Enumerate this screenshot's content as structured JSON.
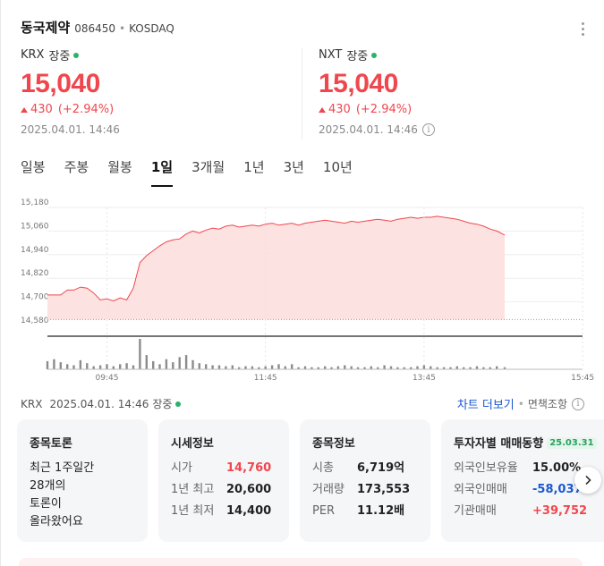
{
  "header": {
    "name": "동국제약",
    "code": "086450",
    "separator": "•",
    "market": "KOSDAQ"
  },
  "krx": {
    "market": "KRX",
    "session": "장중",
    "price": "15,040",
    "change": "430",
    "change_pct": "(+2.94%)",
    "timestamp": "2025.04.01. 14:46"
  },
  "nxt": {
    "market": "NXT",
    "session": "장중",
    "price": "15,040",
    "change": "430",
    "change_pct": "(+2.94%)",
    "timestamp": "2025.04.01. 14:46"
  },
  "tabs": [
    {
      "label": "일봉"
    },
    {
      "label": "주봉"
    },
    {
      "label": "월봉"
    },
    {
      "label": "1일"
    },
    {
      "label": "3개월"
    },
    {
      "label": "1년"
    },
    {
      "label": "3년"
    },
    {
      "label": "10년"
    }
  ],
  "active_tab": "1일",
  "chart_data": {
    "type": "area",
    "y_ticks": [
      "15,180",
      "15,060",
      "14,940",
      "14,820",
      "14,700",
      "14,580"
    ],
    "x_ticks": [
      "09:45",
      "11:45",
      "13:45",
      "15:45"
    ],
    "ylim": [
      14580,
      15180
    ],
    "baseline": 14610,
    "x": [
      "09:00",
      "09:05",
      "09:10",
      "09:15",
      "09:20",
      "09:25",
      "09:30",
      "09:35",
      "09:40",
      "09:45",
      "09:50",
      "09:55",
      "10:00",
      "10:05",
      "10:10",
      "10:15",
      "10:20",
      "10:25",
      "10:30",
      "10:35",
      "10:40",
      "10:45",
      "10:50",
      "10:55",
      "11:00",
      "11:05",
      "11:10",
      "11:15",
      "11:20",
      "11:25",
      "11:30",
      "11:35",
      "11:40",
      "11:45",
      "11:50",
      "11:55",
      "12:00",
      "12:05",
      "12:10",
      "12:15",
      "12:20",
      "12:25",
      "12:30",
      "12:35",
      "12:40",
      "12:45",
      "12:50",
      "12:55",
      "13:00",
      "13:05",
      "13:10",
      "13:15",
      "13:20",
      "13:25",
      "13:30",
      "13:35",
      "13:40",
      "13:45",
      "13:50",
      "13:55",
      "14:00",
      "14:05",
      "14:10",
      "14:15",
      "14:20",
      "14:25",
      "14:30",
      "14:35",
      "14:40",
      "14:46"
    ],
    "price": [
      14735,
      14735,
      14735,
      14760,
      14760,
      14775,
      14770,
      14745,
      14710,
      14715,
      14705,
      14720,
      14710,
      14770,
      14900,
      14935,
      14960,
      14985,
      15005,
      15015,
      15020,
      15045,
      15060,
      15050,
      15065,
      15075,
      15070,
      15085,
      15090,
      15080,
      15085,
      15090,
      15085,
      15095,
      15100,
      15090,
      15095,
      15100,
      15090,
      15100,
      15105,
      15110,
      15115,
      15110,
      15105,
      15100,
      15110,
      15105,
      15110,
      15115,
      15120,
      15115,
      15110,
      15120,
      15125,
      15130,
      15125,
      15130,
      15130,
      15135,
      15130,
      15125,
      15120,
      15110,
      15100,
      15095,
      15085,
      15070,
      15060,
      15040
    ],
    "volume": [
      8,
      10,
      7,
      5,
      4,
      9,
      6,
      3,
      4,
      5,
      3,
      5,
      6,
      4,
      30,
      14,
      8,
      5,
      10,
      7,
      12,
      14,
      9,
      6,
      5,
      4,
      4,
      3,
      4,
      2,
      3,
      3,
      2,
      3,
      4,
      5,
      3,
      5,
      2,
      3,
      2,
      2,
      3,
      2,
      3,
      4,
      3,
      2,
      2,
      3,
      2,
      4,
      3,
      2,
      2,
      2,
      3,
      4,
      3,
      2,
      2,
      2,
      3,
      2,
      2,
      3,
      2,
      2,
      3,
      2
    ]
  },
  "footer": {
    "market": "KRX",
    "timestamp": "2025.04.01. 14:46",
    "status": "장중",
    "chart_more": "차트 더보기",
    "separator": "•",
    "disclaimer": "면책조항"
  },
  "tiles": {
    "discussion": {
      "title": "종목토론",
      "line1": "최근 1주일간",
      "line2": "28개의",
      "line3": "토론이",
      "line4": "올라왔어요"
    },
    "quote": {
      "title": "시세정보",
      "rows": [
        {
          "label": "시가",
          "value": "14,760"
        },
        {
          "label": "1년 최고",
          "value": "20,600"
        },
        {
          "label": "1년 최저",
          "value": "14,400"
        }
      ]
    },
    "info": {
      "title": "종목정보",
      "rows": [
        {
          "label": "시총",
          "value": "6,719억"
        },
        {
          "label": "거래량",
          "value": "173,553"
        },
        {
          "label": "PER",
          "value": "11.12배"
        }
      ]
    },
    "investor": {
      "title": "투자자별 매매동향",
      "date": "25.03.31",
      "rows": [
        {
          "label": "외국인보유율",
          "value": "15.00%"
        },
        {
          "label": "외국인매매",
          "value": "-58,037"
        },
        {
          "label": "기관매매",
          "value": "+39,752"
        }
      ]
    }
  },
  "colors": {
    "up": "#f0474e",
    "down": "#1a58d1",
    "area_fill": "#fde2e2",
    "live_dot": "#28b36b"
  }
}
